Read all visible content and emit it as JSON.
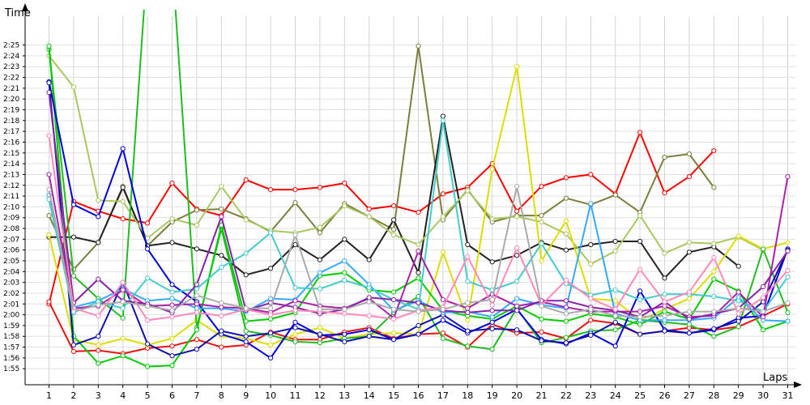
{
  "chart_data": {
    "type": "line",
    "xlabel": "Laps",
    "ylabel": "Time",
    "grid": true,
    "legend": "none",
    "xlim": [
      0,
      31.5
    ],
    "ylim": [
      114,
      147
    ],
    "x_ticks": [
      1,
      2,
      3,
      4,
      5,
      6,
      7,
      8,
      9,
      10,
      11,
      12,
      13,
      14,
      15,
      16,
      17,
      18,
      19,
      20,
      21,
      22,
      23,
      24,
      25,
      26,
      27,
      28,
      29,
      30,
      31
    ],
    "y_ticks": [
      {
        "v": 115,
        "label": "1:55"
      },
      {
        "v": 116,
        "label": "1:56"
      },
      {
        "v": 117,
        "label": "1:57"
      },
      {
        "v": 118,
        "label": "1:58"
      },
      {
        "v": 119,
        "label": "1:59"
      },
      {
        "v": 120,
        "label": "2:00"
      },
      {
        "v": 121,
        "label": "2:01"
      },
      {
        "v": 122,
        "label": "2:02"
      },
      {
        "v": 123,
        "label": "2:03"
      },
      {
        "v": 124,
        "label": "2:04"
      },
      {
        "v": 125,
        "label": "2:05"
      },
      {
        "v": 126,
        "label": "2:06"
      },
      {
        "v": 127,
        "label": "2:07"
      },
      {
        "v": 128,
        "label": "2:08"
      },
      {
        "v": 129,
        "label": "2:09"
      },
      {
        "v": 130,
        "label": "2:10"
      },
      {
        "v": 131,
        "label": "2:11"
      },
      {
        "v": 132,
        "label": "2:12"
      },
      {
        "v": 133,
        "label": "2:13"
      },
      {
        "v": 134,
        "label": "2:14"
      },
      {
        "v": 135,
        "label": "2:15"
      },
      {
        "v": 136,
        "label": "2:16"
      },
      {
        "v": 137,
        "label": "2:17"
      },
      {
        "v": 138,
        "label": "2:18"
      },
      {
        "v": 139,
        "label": "2:19"
      },
      {
        "v": 140,
        "label": "2:20"
      },
      {
        "v": 141,
        "label": "2:21"
      },
      {
        "v": 142,
        "label": "2:22"
      },
      {
        "v": 143,
        "label": "2:23"
      },
      {
        "v": 144,
        "label": "2:24"
      },
      {
        "v": 145,
        "label": "2:25"
      }
    ],
    "series": [
      {
        "color": "#ff0000",
        "values": [
          121,
          130.5,
          129.6,
          128.9,
          128.5,
          132.2,
          129.8,
          129.2,
          132.5,
          131.6,
          131.6,
          131.8,
          132.2,
          129.8,
          130.1,
          129.5,
          131.2,
          131.8,
          134,
          129.6,
          131.9,
          132.7,
          133,
          131.2,
          136.9,
          131.3,
          132.8,
          135.2
        ]
      },
      {
        "color": "#ee1111",
        "values": [
          121.2,
          116.6,
          116.7,
          116.4,
          116.9,
          117.1,
          117.7,
          117,
          117.2,
          118.4,
          117.7,
          117.7,
          118.4,
          118.8,
          117.8,
          118.2,
          118.3,
          117,
          119.1,
          118.3,
          118.4,
          117.8,
          119.5,
          119.2,
          118.2,
          118.5,
          118.8,
          118.6,
          118.9,
          119.9,
          121
        ]
      },
      {
        "color": "#7d7d3c",
        "values": [
          129.2,
          124.2,
          126.7,
          131.9,
          126.4,
          128.6,
          129.7,
          129.8,
          128.9,
          127.7,
          130.4,
          127.6,
          130.3,
          129.1,
          127.9,
          144.9,
          128.8,
          131.6,
          128.6,
          129.2,
          129.2,
          130.8,
          130.2,
          131.1,
          129.5,
          134.6,
          134.9,
          131.8
        ]
      },
      {
        "color": "#222222",
        "values": [
          127.2,
          127.2,
          126.7,
          131.8,
          126.4,
          126.7,
          126.1,
          125.5,
          123.7,
          124.3,
          126.5,
          125.1,
          127,
          125.1,
          128.8,
          123.9,
          138.4,
          126.5,
          124.9,
          125.5,
          126.7,
          126,
          126.5,
          126.8,
          126.8,
          123.4,
          125.8,
          126.3,
          124.5
        ]
      },
      {
        "color": "#a8c860",
        "values": [
          144,
          141.1,
          130.6,
          130.5,
          127.1,
          128.9,
          128.3,
          131.9,
          128.8,
          127.8,
          127.6,
          128.1,
          130.1,
          129.1,
          127.4,
          126.5,
          129.1,
          131.5,
          128.9,
          129.1,
          128.6,
          127.5,
          124.7,
          125.9,
          129.2,
          125.7,
          126.7,
          126.6,
          127.2,
          126
        ]
      },
      {
        "color": "#dddd00",
        "values": [
          127.4,
          117.7,
          117.2,
          117.8,
          117.2,
          117.8,
          119.5,
          118,
          117.8,
          117.2,
          118.2,
          118.8,
          117.8,
          118.2,
          118.3,
          118.2,
          125.8,
          119.5,
          133.5,
          143,
          125,
          128.7,
          121.5,
          121.3,
          119.5,
          120.5,
          121.5,
          124,
          127.3,
          126.1,
          126.7
        ]
      },
      {
        "color": "#22bb22",
        "values": [
          144.6,
          123.6,
          121.5,
          119.7,
          153,
          153,
          118.8,
          128,
          118.5,
          118.1,
          117.5,
          117.4,
          117.8,
          118,
          120.2,
          121.7,
          117.8,
          117.1,
          116.8,
          120.6,
          117.4,
          117.9,
          118.5,
          118.6,
          119.5,
          119.3,
          119.1,
          118,
          118.9,
          126.1,
          120.2
        ]
      },
      {
        "color": "#00cc00",
        "values": [
          144.9,
          118,
          115.5,
          116.2,
          115.2,
          115.3,
          118.6,
          128.3,
          119.4,
          119.6,
          120.2,
          123.6,
          123.9,
          122.3,
          122.1,
          123.4,
          120.4,
          119.9,
          119.6,
          120.8,
          119.6,
          119.4,
          120.1,
          119.8,
          119.1,
          120.3,
          119.6,
          123.3,
          122.2,
          118.6,
          119.4
        ]
      },
      {
        "color": "#0000dd",
        "values": [
          141.6,
          130.2,
          129.1,
          135.4,
          126.1,
          122.8,
          121.2,
          118.2,
          117.5,
          116,
          119.3,
          118.1,
          118.2,
          118.6,
          117.7,
          118.2,
          119.5,
          118.3,
          119.3,
          120.5,
          117.7,
          117.3,
          118.3,
          117.1,
          122.2,
          118.6,
          118.3,
          118.6,
          119.7,
          119.9,
          126.1
        ]
      },
      {
        "color": "#1111aa",
        "values": [
          141.5,
          117.2,
          118,
          123,
          117.3,
          116.2,
          116.8,
          118.5,
          118,
          118.3,
          118.8,
          118.2,
          117.5,
          118,
          117.7,
          119,
          120,
          118.5,
          118.7,
          118.6,
          117.6,
          117.4,
          118.1,
          119.3,
          118.2,
          118.5,
          118.3,
          118.7,
          119.4,
          121.2,
          126
        ]
      },
      {
        "color": "#33aaff",
        "values": [
          131.1,
          120.7,
          121.3,
          122.4,
          121.3,
          121.5,
          120.6,
          120.6,
          120.3,
          121.5,
          121.4,
          123.9,
          125,
          122.8,
          120.4,
          121.3,
          120.2,
          120.3,
          119.8,
          121.5,
          120.9,
          120.6,
          130.3,
          120.1,
          119.5,
          119.5,
          119.5,
          119.7,
          121.6,
          119.5,
          119.4
        ]
      },
      {
        "color": "#44cccc",
        "values": [
          130.7,
          120.2,
          121.2,
          120.6,
          123.4,
          122.1,
          122.4,
          124.4,
          125.7,
          127.6,
          122.5,
          122.4,
          123.2,
          122.5,
          121.4,
          120.5,
          138,
          123.1,
          122.3,
          123.1,
          126.6,
          122.9,
          121.8,
          122.3,
          121.4,
          121.9,
          121.9,
          121.7,
          121.3,
          120.3,
          123.5
        ]
      },
      {
        "color": "#aa22aa",
        "values": [
          133,
          120.6,
          120.8,
          122.3,
          120.8,
          120.9,
          121,
          120.7,
          120.6,
          120.2,
          121.3,
          120.8,
          120.6,
          121.5,
          119.7,
          125.9,
          121.4,
          120.6,
          121.9,
          120.8,
          121.2,
          120.7,
          120.3,
          120.3,
          120.3,
          120.8,
          119.8,
          119.9,
          122.1,
          119.8,
          132.8
        ]
      },
      {
        "color": "#8822aa",
        "values": [
          140.6,
          121.1,
          123.3,
          121.3,
          121,
          120.2,
          122.8,
          129.1,
          120.4,
          121.1,
          120.7,
          120.1,
          120.5,
          121.6,
          121.4,
          121.1,
          120.4,
          120.2,
          120.4,
          120.4,
          121.3,
          121.3,
          120.7,
          120.4,
          119.8,
          121.2,
          119.6,
          120.1,
          120.6,
          122.6,
          125.9
        ]
      },
      {
        "color": "#ff88bb",
        "values": [
          136.6,
          120.6,
          119.9,
          123,
          119.5,
          119.8,
          120.2,
          119.9,
          120.5,
          120,
          120.4,
          120.3,
          120.1,
          119.9,
          119.6,
          120.4,
          120.7,
          125.4,
          120.9,
          126.2,
          120.9,
          123.2,
          121.5,
          120.5,
          124.2,
          121.2,
          122.1,
          125.3,
          120.1,
          121.6,
          124.1
        ]
      },
      {
        "color": "#aaaaaa",
        "values": [
          131.6,
          120.3,
          120.9,
          121.2,
          120.8,
          120.4,
          121.8,
          121.1,
          120.6,
          120.6,
          127.4,
          120.5,
          120.5,
          121.2,
          120.5,
          120.3,
          120.5,
          121.1,
          121.4,
          131.9,
          120.8,
          120.1,
          120.5,
          119.9,
          119.8,
          119.9,
          120.3,
          120.3,
          120.6,
          120.3,
          121.1
        ]
      }
    ]
  }
}
